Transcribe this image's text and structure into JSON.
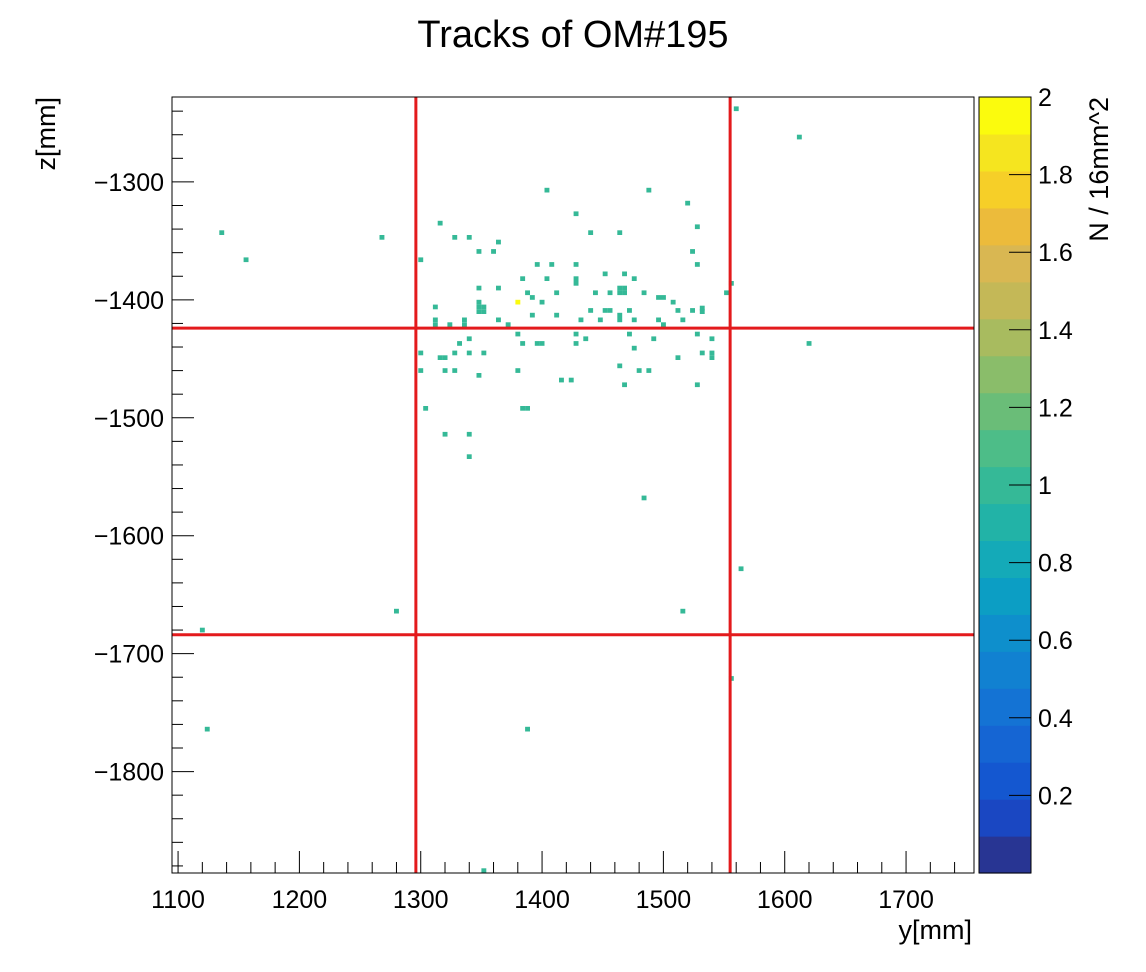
{
  "chart_data": {
    "type": "heatmap",
    "title": "Tracks of OM#195",
    "xlabel": "y[mm]",
    "ylabel": "z[mm]",
    "zlabel": "N / 16mm^2",
    "xlim": [
      1095,
      1756
    ],
    "ylim": [
      -1886,
      -1228
    ],
    "zlim": [
      0,
      2
    ],
    "bin_size": 4,
    "x_ticks": [
      1100,
      1200,
      1300,
      1400,
      1500,
      1600,
      1700
    ],
    "x_tick_labels": [
      "1100",
      "1200",
      "1300",
      "1400",
      "1500",
      "1600",
      "1700"
    ],
    "y_ticks": [
      -1300,
      -1400,
      -1500,
      -1600,
      -1700,
      -1800
    ],
    "y_tick_labels": [
      "−1300",
      "−1400",
      "−1500",
      "−1600",
      "−1700",
      "−1800"
    ],
    "z_ticks": [
      0.2,
      0.4,
      0.6,
      0.8,
      1,
      1.2,
      1.4,
      1.6,
      1.8,
      2
    ],
    "z_tick_labels": [
      "0.2",
      "0.4",
      "0.6",
      "0.8",
      "1",
      "1.2",
      "1.4",
      "1.6",
      "1.8",
      "2"
    ],
    "palette": [
      "#283593",
      "#1a47c2",
      "#1457d0",
      "#1565d3",
      "#1473d4",
      "#1181d1",
      "#0e8fcc",
      "#0c9ec4",
      "#14aab8",
      "#22b3a7",
      "#35b997",
      "#4dbd88",
      "#6abd78",
      "#8abd6a",
      "#a8bb5f",
      "#c4b857",
      "#d9b752",
      "#ecbb3b",
      "#f6cf28",
      "#f5e51f",
      "#fbfb0d"
    ],
    "overlay_lines": {
      "color": "#e31a1c",
      "vertical_y": [
        1296,
        1555
      ],
      "horizontal_z": [
        -1424,
        -1684
      ]
    },
    "bins": [
      [
        1560,
        -1238,
        1
      ],
      [
        1612,
        -1262,
        1
      ],
      [
        1404,
        -1307,
        1
      ],
      [
        1488,
        -1307,
        1
      ],
      [
        1520,
        -1318,
        1
      ],
      [
        1428,
        -1327,
        1
      ],
      [
        1316,
        -1335,
        1
      ],
      [
        1528,
        -1338,
        1
      ],
      [
        1136,
        -1343,
        1
      ],
      [
        1440,
        -1343,
        1
      ],
      [
        1464,
        -1343,
        1
      ],
      [
        1268,
        -1347,
        1
      ],
      [
        1328,
        -1347,
        1
      ],
      [
        1340,
        -1347,
        1
      ],
      [
        1364,
        -1351,
        1
      ],
      [
        1348,
        -1359,
        1
      ],
      [
        1360,
        -1359,
        1
      ],
      [
        1524,
        -1359,
        1
      ],
      [
        1156,
        -1366,
        1
      ],
      [
        1300,
        -1366,
        1
      ],
      [
        1396,
        -1370,
        1
      ],
      [
        1408,
        -1370,
        1
      ],
      [
        1428,
        -1370,
        1
      ],
      [
        1528,
        -1370,
        1
      ],
      [
        1452,
        -1378,
        1
      ],
      [
        1468,
        -1378,
        1
      ],
      [
        1384,
        -1382,
        1
      ],
      [
        1404,
        -1382,
        1
      ],
      [
        1428,
        -1382,
        1
      ],
      [
        1476,
        -1382,
        1
      ],
      [
        1428,
        -1386,
        1
      ],
      [
        1556,
        -1386,
        1
      ],
      [
        1348,
        -1390,
        1
      ],
      [
        1364,
        -1390,
        1
      ],
      [
        1464,
        -1390,
        1
      ],
      [
        1468,
        -1390,
        1
      ],
      [
        1464,
        -1394,
        1
      ],
      [
        1468,
        -1394,
        1
      ],
      [
        1388,
        -1394,
        1
      ],
      [
        1412,
        -1394,
        1
      ],
      [
        1444,
        -1394,
        1
      ],
      [
        1456,
        -1394,
        1
      ],
      [
        1484,
        -1394,
        1
      ],
      [
        1552,
        -1394,
        1
      ],
      [
        1392,
        -1398,
        1
      ],
      [
        1496,
        -1398,
        1
      ],
      [
        1500,
        -1398,
        1
      ],
      [
        1348,
        -1402,
        1
      ],
      [
        1380,
        -1402,
        2
      ],
      [
        1400,
        -1402,
        1
      ],
      [
        1508,
        -1402,
        1
      ],
      [
        1348,
        -1406,
        1
      ],
      [
        1352,
        -1406,
        1
      ],
      [
        1312,
        -1406,
        1
      ],
      [
        1440,
        -1409,
        1
      ],
      [
        1452,
        -1409,
        1
      ],
      [
        1456,
        -1409,
        1
      ],
      [
        1472,
        -1409,
        1
      ],
      [
        1512,
        -1409,
        1
      ],
      [
        1524,
        -1409,
        1
      ],
      [
        1348,
        -1410,
        1
      ],
      [
        1352,
        -1410,
        1
      ],
      [
        1532,
        -1410,
        1
      ],
      [
        1532,
        -1407,
        1
      ],
      [
        1392,
        -1413,
        1
      ],
      [
        1412,
        -1413,
        1
      ],
      [
        1464,
        -1413,
        1
      ],
      [
        1312,
        -1417,
        1
      ],
      [
        1336,
        -1417,
        1
      ],
      [
        1364,
        -1417,
        1
      ],
      [
        1432,
        -1417,
        1
      ],
      [
        1448,
        -1417,
        1
      ],
      [
        1464,
        -1417,
        1
      ],
      [
        1476,
        -1417,
        1
      ],
      [
        1496,
        -1417,
        1
      ],
      [
        1516,
        -1417,
        1
      ],
      [
        1312,
        -1421,
        1
      ],
      [
        1324,
        -1421,
        1
      ],
      [
        1336,
        -1421,
        1
      ],
      [
        1372,
        -1421,
        1
      ],
      [
        1500,
        -1421,
        1
      ],
      [
        1380,
        -1429,
        1
      ],
      [
        1428,
        -1429,
        1
      ],
      [
        1472,
        -1429,
        1
      ],
      [
        1528,
        -1429,
        1
      ],
      [
        1340,
        -1433,
        1
      ],
      [
        1436,
        -1433,
        1
      ],
      [
        1492,
        -1433,
        1
      ],
      [
        1540,
        -1433,
        1
      ],
      [
        1332,
        -1437,
        1
      ],
      [
        1384,
        -1437,
        1
      ],
      [
        1396,
        -1437,
        1
      ],
      [
        1400,
        -1437,
        1
      ],
      [
        1428,
        -1437,
        1
      ],
      [
        1620,
        -1437,
        1
      ],
      [
        1476,
        -1441,
        1
      ],
      [
        1300,
        -1445,
        1
      ],
      [
        1328,
        -1445,
        1
      ],
      [
        1340,
        -1445,
        1
      ],
      [
        1352,
        -1445,
        1
      ],
      [
        1532,
        -1445,
        1
      ],
      [
        1540,
        -1445,
        1
      ],
      [
        1316,
        -1449,
        1
      ],
      [
        1320,
        -1449,
        1
      ],
      [
        1512,
        -1449,
        1
      ],
      [
        1540,
        -1449,
        1
      ],
      [
        1464,
        -1456,
        1
      ],
      [
        1300,
        -1460,
        1
      ],
      [
        1320,
        -1460,
        1
      ],
      [
        1328,
        -1460,
        1
      ],
      [
        1380,
        -1460,
        1
      ],
      [
        1480,
        -1460,
        1
      ],
      [
        1488,
        -1460,
        1
      ],
      [
        1348,
        -1464,
        1
      ],
      [
        1416,
        -1468,
        1
      ],
      [
        1424,
        -1468,
        1
      ],
      [
        1468,
        -1472,
        1
      ],
      [
        1528,
        -1472,
        1
      ],
      [
        1304,
        -1492,
        1
      ],
      [
        1384,
        -1492,
        1
      ],
      [
        1388,
        -1492,
        1
      ],
      [
        1320,
        -1514,
        1
      ],
      [
        1340,
        -1514,
        1
      ],
      [
        1340,
        -1533,
        1
      ],
      [
        1484,
        -1568,
        1
      ],
      [
        1564,
        -1628,
        1
      ],
      [
        1280,
        -1664,
        1
      ],
      [
        1516,
        -1664,
        1
      ],
      [
        1120,
        -1680,
        1
      ],
      [
        1556,
        -1721,
        1
      ],
      [
        1124,
        -1764,
        1
      ],
      [
        1388,
        -1764,
        1
      ],
      [
        1352,
        -1884,
        1
      ]
    ]
  }
}
